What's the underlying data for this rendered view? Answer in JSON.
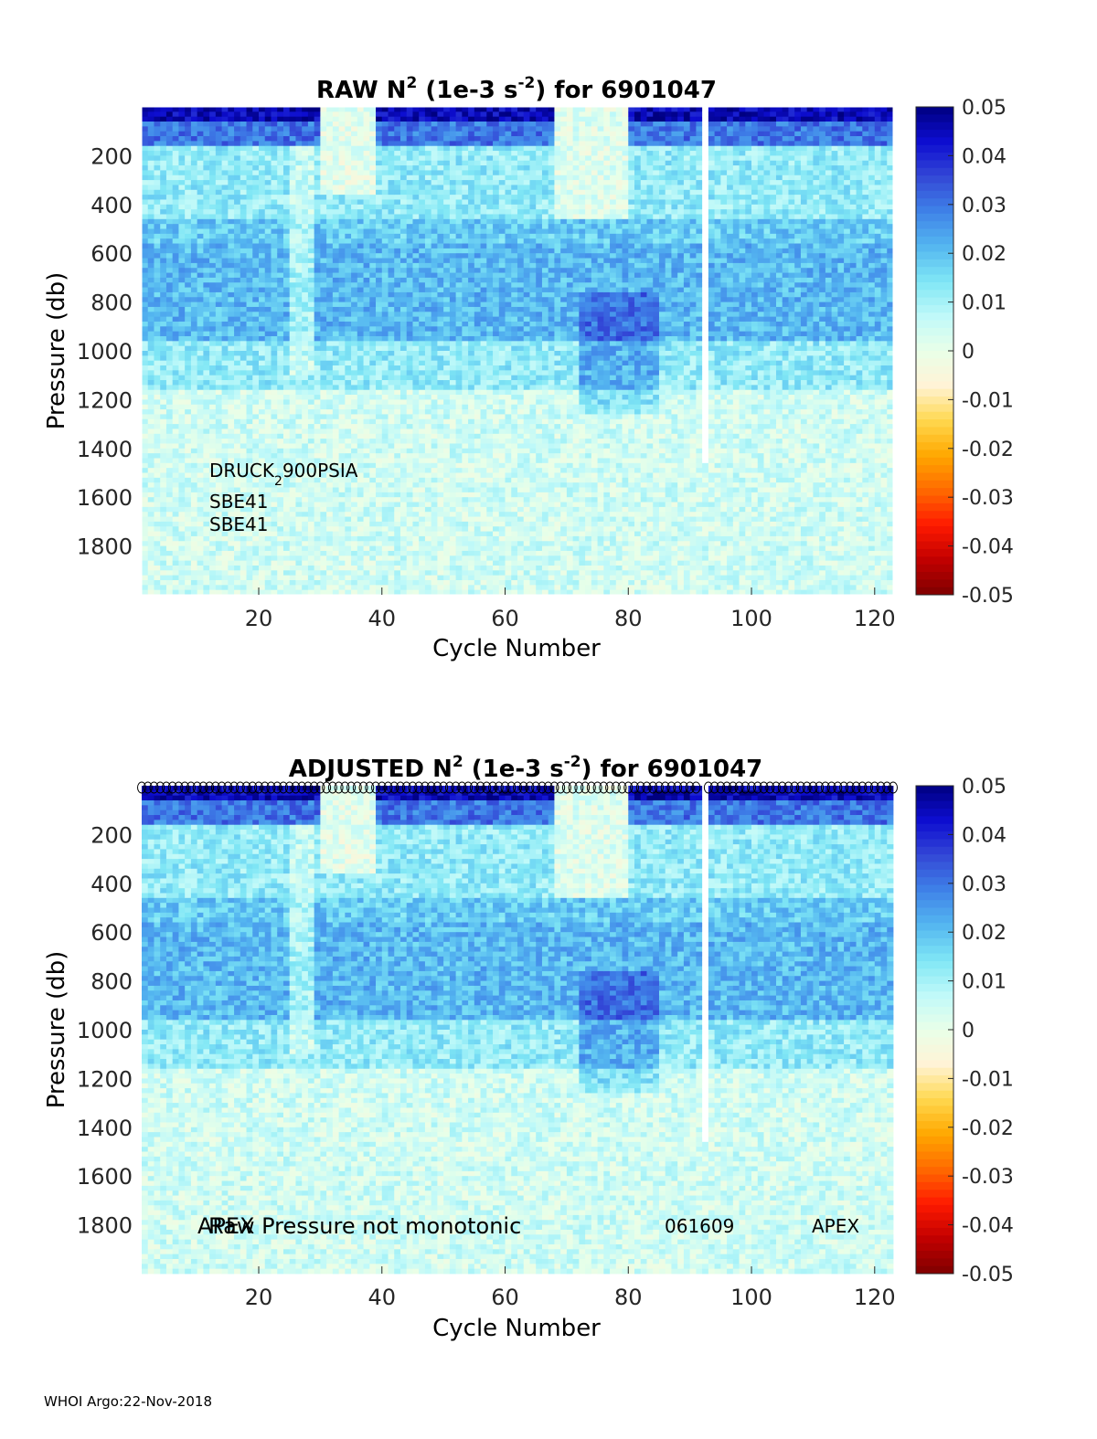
{
  "footer": "WHOI Argo:22-Nov-2018",
  "colors": {
    "colormap": [
      "#7f0000",
      "#c10000",
      "#ff1a00",
      "#ff6a00",
      "#ffa800",
      "#ffd84f",
      "#fff3d6",
      "#e8ffe8",
      "#bff9f9",
      "#7fe6f5",
      "#54b6f0",
      "#3f82e8",
      "#3347d6",
      "#0d0dd0",
      "#000080"
    ]
  },
  "chart_data": [
    {
      "type": "heatmap",
      "title_prefix": "RAW N",
      "title_sup1": "2",
      "title_mid": " (1e-3 s",
      "title_sup2": "-2",
      "title_suffix": ") for 6901047",
      "xlabel": "Cycle Number",
      "ylabel": "Pressure (db)",
      "xlim": [
        1,
        123
      ],
      "ylim": [
        0,
        2000
      ],
      "y_reversed": true,
      "xticks": [
        20,
        40,
        60,
        80,
        100,
        120
      ],
      "yticks": [
        200,
        400,
        600,
        800,
        1000,
        1200,
        1400,
        1600,
        1800
      ],
      "colorbar": {
        "min": -0.05,
        "max": 0.05,
        "ticks": [
          "0.05",
          "0.04",
          "0.03",
          "0.02",
          "0.01",
          "0",
          "-0.01",
          "-0.02",
          "-0.03",
          "-0.04",
          "-0.05"
        ]
      },
      "annotations": [
        {
          "text_main": "DRUCK",
          "text_sub": "2",
          "text_rest": "900PSIA"
        },
        {
          "text": "SBE41"
        },
        {
          "text": "SBE41"
        }
      ],
      "missing_profile_cycle": 92
    },
    {
      "type": "heatmap",
      "title_prefix": "ADJUSTED N",
      "title_sup1": "2",
      "title_mid": " (1e-3 s",
      "title_sup2": "-2",
      "title_suffix": ") for 6901047",
      "xlabel": "Cycle Number",
      "ylabel": "Pressure (db)",
      "xlim": [
        1,
        123
      ],
      "ylim": [
        0,
        2000
      ],
      "y_reversed": true,
      "xticks": [
        20,
        40,
        60,
        80,
        100,
        120
      ],
      "yticks": [
        200,
        400,
        600,
        800,
        1000,
        1200,
        1400,
        1600,
        1800
      ],
      "colorbar": {
        "min": -0.05,
        "max": 0.05,
        "ticks": [
          "0.05",
          "0.04",
          "0.03",
          "0.02",
          "0.01",
          "0",
          "-0.01",
          "-0.02",
          "-0.03",
          "-0.04",
          "-0.05"
        ]
      },
      "annotations": [
        {
          "text": "APEX"
        },
        {
          "text": "Raw Pressure not monotonic"
        },
        {
          "text": "061609"
        },
        {
          "text": "APEX"
        }
      ],
      "qc_marker": "o",
      "missing_profile_cycle": 92
    }
  ]
}
